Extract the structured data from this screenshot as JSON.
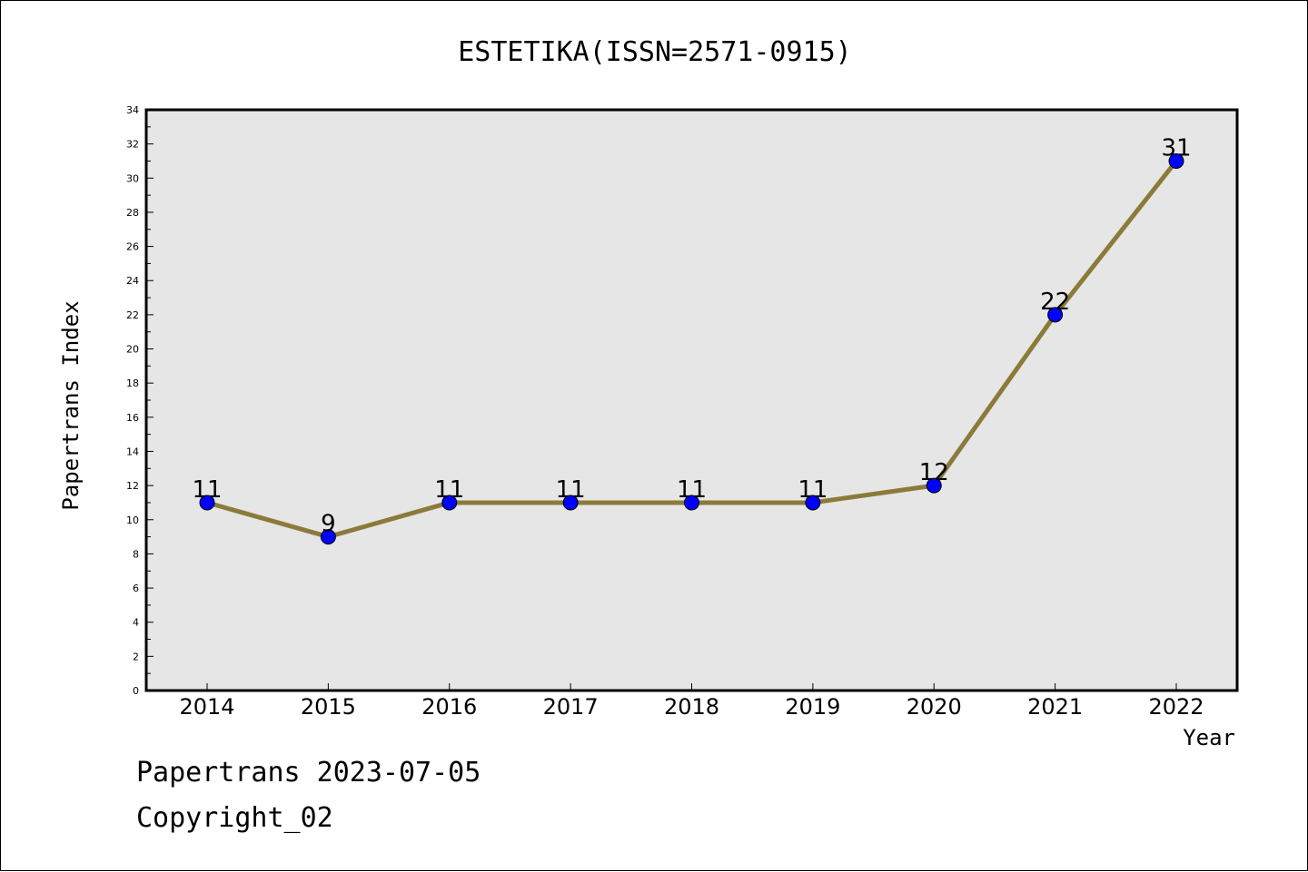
{
  "chart_data": {
    "type": "line",
    "title": "ESTETIKA(ISSN=2571-0915)",
    "xlabel": "Year",
    "ylabel": "Papertrans Index",
    "categories": [
      "2014",
      "2015",
      "2016",
      "2017",
      "2018",
      "2019",
      "2020",
      "2021",
      "2022"
    ],
    "series": [
      {
        "values": [
          11,
          9,
          11,
          11,
          11,
          11,
          12,
          22,
          31
        ]
      }
    ],
    "ylim": [
      0,
      34
    ],
    "yticks": [
      0,
      2,
      4,
      6,
      8,
      10,
      12,
      14,
      16,
      18,
      20,
      22,
      24,
      26,
      28,
      30,
      32,
      34
    ],
    "grid": false,
    "data_labels": true,
    "colors": {
      "line": "#8b7a3a",
      "marker": "#0000ff",
      "plot_background": "#e6e6e6"
    }
  },
  "footer": {
    "line1": "Papertrans 2023-07-05",
    "line2": "Copyright_02"
  }
}
